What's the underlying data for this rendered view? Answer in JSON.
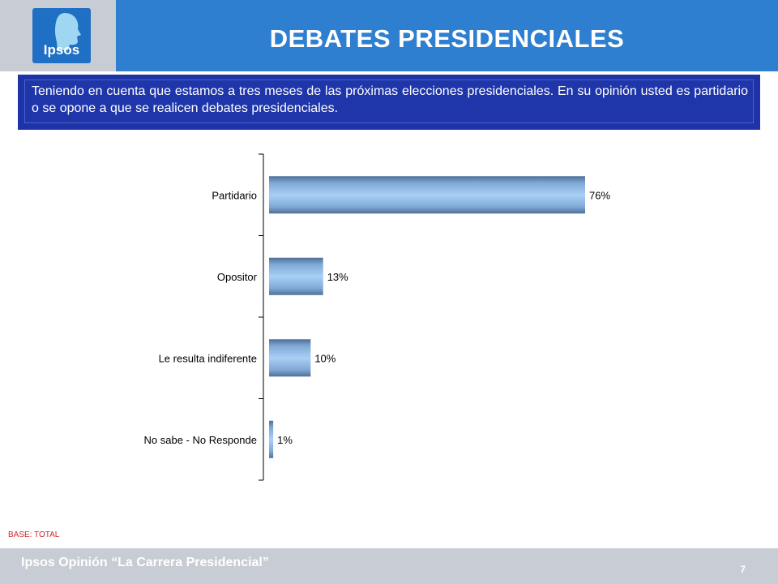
{
  "header": {
    "title": "DEBATES PRESIDENCIALES",
    "logo_text": "Ipsos"
  },
  "question": {
    "text": "Teniendo en cuenta que estamos a tres meses de las próximas elecciones presidenciales. En su opinión usted es partidario o se opone a que se realicen debates presidenciales."
  },
  "colors": {
    "header_blue": "#2f7fd0",
    "question_navy": "#1e33a8",
    "bar_blue": "#8cb8e8",
    "base_red": "#d0262b",
    "footer_grey": "#c8ccd4"
  },
  "chart_data": {
    "type": "bar",
    "orientation": "horizontal",
    "categories": [
      "Partidario",
      "Opositor",
      "Le resulta indiferente",
      "No sabe - No Responde"
    ],
    "values": [
      76,
      13,
      10,
      1
    ],
    "data_labels": [
      "76%",
      "13%",
      "10%",
      "1%"
    ],
    "unit": "%",
    "xlim": [
      0,
      100
    ],
    "grid": false
  },
  "base_note": "BASE: TOTAL",
  "footer": {
    "text": "Ipsos Opinión “La Carrera Presidencial”",
    "page_number": "7"
  }
}
